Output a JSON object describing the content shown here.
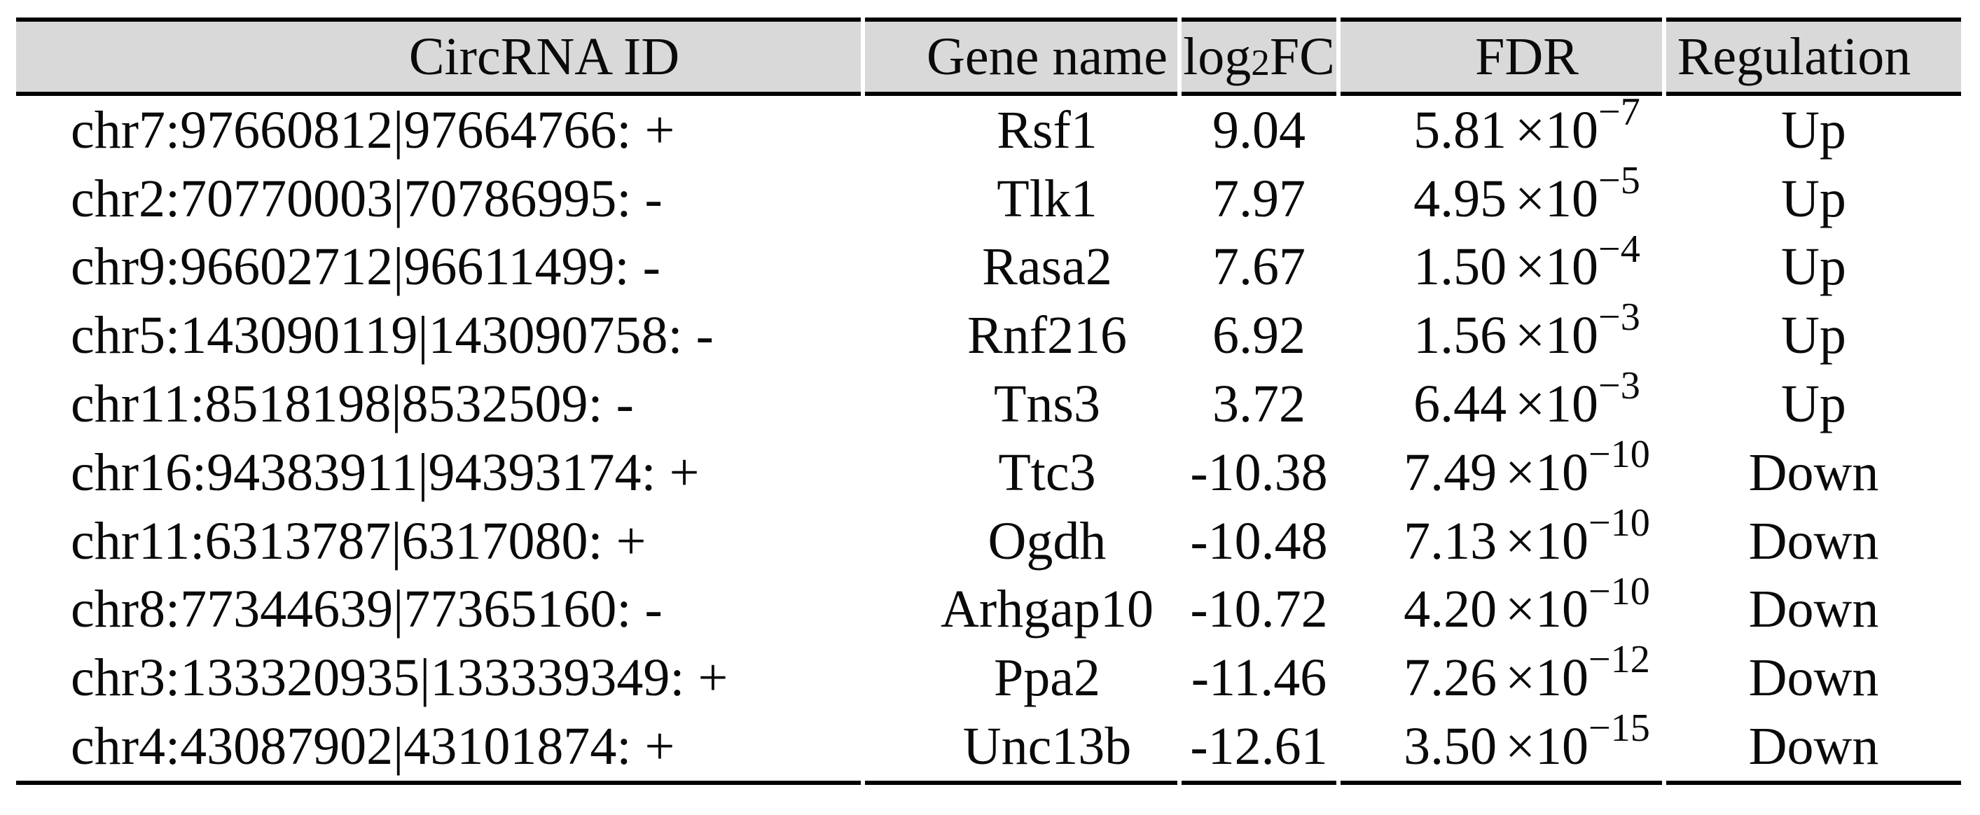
{
  "table": {
    "columns": [
      {
        "label": "CircRNA ID"
      },
      {
        "label": "Gene name"
      },
      {
        "label_prefix": "log",
        "label_sub": "2",
        "label_suffix": "FC"
      },
      {
        "label": "FDR"
      },
      {
        "label": "Regulation"
      }
    ],
    "times_ten": "×10",
    "rows": [
      {
        "circrna_id": "chr7:97660812|97664766: +",
        "gene_name": "Rsf1",
        "log2fc": "9.04",
        "fdr_mantissa": "5.81",
        "fdr_exponent": "−7",
        "regulation": "Up"
      },
      {
        "circrna_id": "chr2:70770003|70786995: -",
        "gene_name": "Tlk1",
        "log2fc": "7.97",
        "fdr_mantissa": "4.95",
        "fdr_exponent": "−5",
        "regulation": "Up"
      },
      {
        "circrna_id": "chr9:96602712|96611499: -",
        "gene_name": "Rasa2",
        "log2fc": "7.67",
        "fdr_mantissa": "1.50",
        "fdr_exponent": "−4",
        "regulation": "Up"
      },
      {
        "circrna_id": "chr5:143090119|143090758: -",
        "gene_name": "Rnf216",
        "log2fc": "6.92",
        "fdr_mantissa": "1.56",
        "fdr_exponent": "−3",
        "regulation": "Up"
      },
      {
        "circrna_id": "chr11:8518198|8532509: -",
        "gene_name": "Tns3",
        "log2fc": "3.72",
        "fdr_mantissa": "6.44",
        "fdr_exponent": "−3",
        "regulation": "Up"
      },
      {
        "circrna_id": "chr16:94383911|94393174: +",
        "gene_name": "Ttc3",
        "log2fc": "-10.38",
        "fdr_mantissa": "7.49",
        "fdr_exponent": "−10",
        "regulation": "Down"
      },
      {
        "circrna_id": "chr11:6313787|6317080: +",
        "gene_name": "Ogdh",
        "log2fc": "-10.48",
        "fdr_mantissa": "7.13",
        "fdr_exponent": "−10",
        "regulation": "Down"
      },
      {
        "circrna_id": "chr8:77344639|77365160: -",
        "gene_name": "Arhgap10",
        "log2fc": "-10.72",
        "fdr_mantissa": "4.20",
        "fdr_exponent": "−10",
        "regulation": "Down"
      },
      {
        "circrna_id": "chr3:133320935|133339349: +",
        "gene_name": "Ppa2",
        "log2fc": "-11.46",
        "fdr_mantissa": "7.26",
        "fdr_exponent": "−12",
        "regulation": "Down"
      },
      {
        "circrna_id": "chr4:43087902|43101874: +",
        "gene_name": "Unc13b",
        "log2fc": "-12.61",
        "fdr_mantissa": "3.50",
        "fdr_exponent": "−15",
        "regulation": "Down"
      }
    ]
  },
  "colors": {
    "header_bg": "#d9d9d9",
    "rule": "#000000",
    "text": "#0a0a0a",
    "background": "#ffffff"
  }
}
